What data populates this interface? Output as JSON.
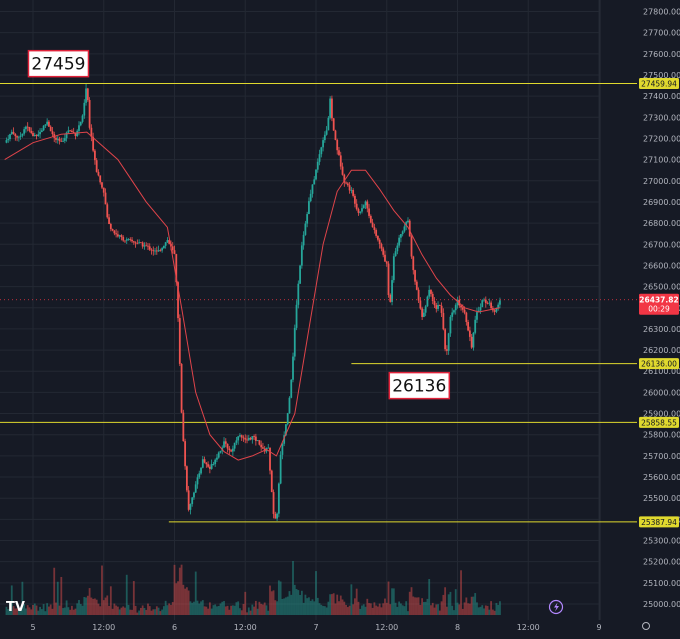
{
  "chart_data": {
    "type": "candlestick",
    "instrument_view": "price chart with moving average and volume",
    "y_axis": {
      "min": 25000,
      "max": 27800,
      "ticks": [
        25000,
        25100,
        25200,
        25300,
        25400,
        25500,
        25600,
        25700,
        25800,
        25900,
        26000,
        26100,
        26200,
        26300,
        26400,
        26500,
        26600,
        26700,
        26800,
        26900,
        27000,
        27100,
        27200,
        27300,
        27400,
        27500,
        27600,
        27700,
        27800
      ],
      "tick_labels": [
        "25000.00",
        "25100.00",
        "25200.00",
        "25300.00",
        "25400.00",
        "25500.00",
        "25600.00",
        "25700.00",
        "25800.00",
        "25900.00",
        "26000.00",
        "26100.00",
        "26200.00",
        "26300.00",
        "26400.00",
        "26500.00",
        "26600.00",
        "26700.00",
        "26800.00",
        "26900.00",
        "27000.00",
        "27100.00",
        "27200.00",
        "27300.00",
        "27400.00",
        "27500.00",
        "27600.00",
        "27700.00",
        "27800.00"
      ]
    },
    "x_axis": {
      "ticks": [
        {
          "label": "5",
          "t": 0.0
        },
        {
          "label": "12:00",
          "t": 0.5
        },
        {
          "label": "6",
          "t": 1.0
        },
        {
          "label": "12:00",
          "t": 1.5
        },
        {
          "label": "7",
          "t": 2.0
        },
        {
          "label": "12:00",
          "t": 2.5
        },
        {
          "label": "8",
          "t": 3.0
        },
        {
          "label": "12:00",
          "t": 3.5
        },
        {
          "label": "9",
          "t": 4.0
        }
      ]
    },
    "price_path": [
      [
        -0.2,
        27180
      ],
      [
        -0.15,
        27230
      ],
      [
        -0.1,
        27200
      ],
      [
        -0.05,
        27260
      ],
      [
        0.0,
        27210
      ],
      [
        0.05,
        27230
      ],
      [
        0.1,
        27280
      ],
      [
        0.15,
        27200
      ],
      [
        0.2,
        27180
      ],
      [
        0.25,
        27240
      ],
      [
        0.3,
        27220
      ],
      [
        0.35,
        27300
      ],
      [
        0.38,
        27459
      ],
      [
        0.4,
        27250
      ],
      [
        0.45,
        27050
      ],
      [
        0.5,
        26950
      ],
      [
        0.53,
        26800
      ],
      [
        0.58,
        26750
      ],
      [
        0.65,
        26720
      ],
      [
        0.72,
        26710
      ],
      [
        0.8,
        26690
      ],
      [
        0.88,
        26660
      ],
      [
        0.95,
        26720
      ],
      [
        1.0,
        26650
      ],
      [
        1.02,
        26450
      ],
      [
        1.05,
        25900
      ],
      [
        1.08,
        25600
      ],
      [
        1.1,
        25450
      ],
      [
        1.15,
        25560
      ],
      [
        1.2,
        25680
      ],
      [
        1.25,
        25640
      ],
      [
        1.3,
        25700
      ],
      [
        1.35,
        25760
      ],
      [
        1.4,
        25720
      ],
      [
        1.45,
        25800
      ],
      [
        1.5,
        25770
      ],
      [
        1.55,
        25790
      ],
      [
        1.6,
        25760
      ],
      [
        1.63,
        25720
      ],
      [
        1.66,
        25750
      ],
      [
        1.68,
        25600
      ],
      [
        1.7,
        25420
      ],
      [
        1.72,
        25380
      ],
      [
        1.75,
        25700
      ],
      [
        1.8,
        25900
      ],
      [
        1.83,
        26100
      ],
      [
        1.86,
        26400
      ],
      [
        1.9,
        26700
      ],
      [
        1.95,
        26900
      ],
      [
        2.0,
        27050
      ],
      [
        2.05,
        27200
      ],
      [
        2.08,
        27250
      ],
      [
        2.1,
        27380
      ],
      [
        2.12,
        27250
      ],
      [
        2.15,
        27150
      ],
      [
        2.2,
        27000
      ],
      [
        2.25,
        26950
      ],
      [
        2.3,
        26850
      ],
      [
        2.35,
        26900
      ],
      [
        2.4,
        26780
      ],
      [
        2.45,
        26700
      ],
      [
        2.5,
        26600
      ],
      [
        2.52,
        26380
      ],
      [
        2.55,
        26650
      ],
      [
        2.6,
        26750
      ],
      [
        2.65,
        26820
      ],
      [
        2.68,
        26600
      ],
      [
        2.72,
        26450
      ],
      [
        2.75,
        26350
      ],
      [
        2.8,
        26480
      ],
      [
        2.85,
        26400
      ],
      [
        2.88,
        26420
      ],
      [
        2.9,
        26300
      ],
      [
        2.92,
        26160
      ],
      [
        2.95,
        26350
      ],
      [
        3.0,
        26430
      ],
      [
        3.05,
        26380
      ],
      [
        3.1,
        26220
      ],
      [
        3.13,
        26360
      ],
      [
        3.18,
        26440
      ],
      [
        3.22,
        26420
      ],
      [
        3.27,
        26380
      ],
      [
        3.3,
        26437
      ]
    ],
    "moving_average": [
      [
        -0.2,
        27100
      ],
      [
        0.0,
        27180
      ],
      [
        0.2,
        27220
      ],
      [
        0.38,
        27230
      ],
      [
        0.6,
        27100
      ],
      [
        0.8,
        26900
      ],
      [
        0.95,
        26780
      ],
      [
        1.05,
        26400
      ],
      [
        1.15,
        26000
      ],
      [
        1.25,
        25800
      ],
      [
        1.35,
        25720
      ],
      [
        1.45,
        25680
      ],
      [
        1.55,
        25700
      ],
      [
        1.65,
        25730
      ],
      [
        1.72,
        25700
      ],
      [
        1.85,
        25900
      ],
      [
        1.95,
        26300
      ],
      [
        2.05,
        26700
      ],
      [
        2.15,
        26950
      ],
      [
        2.25,
        27050
      ],
      [
        2.35,
        27050
      ],
      [
        2.45,
        26960
      ],
      [
        2.55,
        26860
      ],
      [
        2.65,
        26780
      ],
      [
        2.75,
        26650
      ],
      [
        2.85,
        26540
      ],
      [
        2.95,
        26460
      ],
      [
        3.05,
        26400
      ],
      [
        3.15,
        26380
      ],
      [
        3.3,
        26400
      ]
    ],
    "price_levels": [
      {
        "value": 27459.94,
        "label": "27459.94",
        "color": "#e0d92e",
        "full_width": true
      },
      {
        "value": 26136.0,
        "label": "26136.00",
        "color": "#e0d92e",
        "full_width": false,
        "from_t": 2.25
      },
      {
        "value": 25858.55,
        "label": "25858.55",
        "color": "#e0d92e",
        "full_width": true
      },
      {
        "value": 25387.94,
        "label": "25387.94",
        "color": "#e0d92e",
        "full_width": false,
        "from_t": 0.96
      }
    ],
    "current_price": {
      "value": 26437.82,
      "label": "26437.82",
      "countdown": "00:29",
      "color": "#f23645"
    },
    "annotations": [
      {
        "text": "27459",
        "x_t": 0.18,
        "y": 27459
      },
      {
        "text": "26136",
        "x_t": 2.73,
        "y": 26136
      }
    ],
    "colors": {
      "up": "#26a69a",
      "down": "#ef5350",
      "ma": "#e0444a",
      "level": "#e0d92e",
      "grid": "#232833",
      "text": "#b2b5be"
    }
  },
  "ui": {
    "logo_text": "TV"
  }
}
